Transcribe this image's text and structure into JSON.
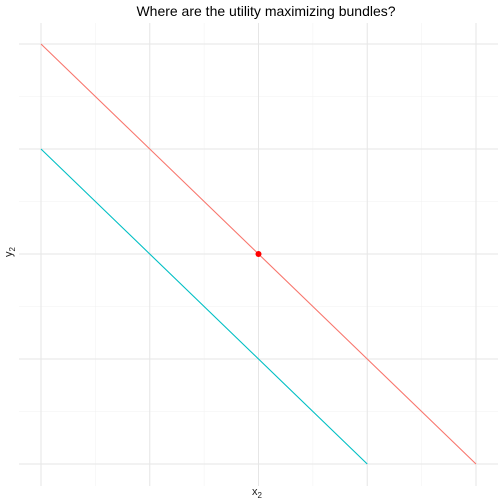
{
  "chart_data": {
    "type": "line",
    "title": "Where are the utility maximizing bundles?",
    "xlabel": {
      "base": "x",
      "sub": "2"
    },
    "ylabel": {
      "base": "y",
      "sub": "2"
    },
    "xlim": [
      0,
      10
    ],
    "ylim": [
      0,
      10
    ],
    "grid": true,
    "show_tick_labels": false,
    "legend": "none",
    "series": [
      {
        "color": "#F8766D",
        "x": [
          0,
          10
        ],
        "y": [
          10,
          0
        ]
      },
      {
        "color": "#00BFC4",
        "x": [
          0,
          7.5
        ],
        "y": [
          7.5,
          0
        ]
      }
    ],
    "points": [
      {
        "x": 5,
        "y": 5,
        "color": "#FF0000"
      }
    ]
  }
}
